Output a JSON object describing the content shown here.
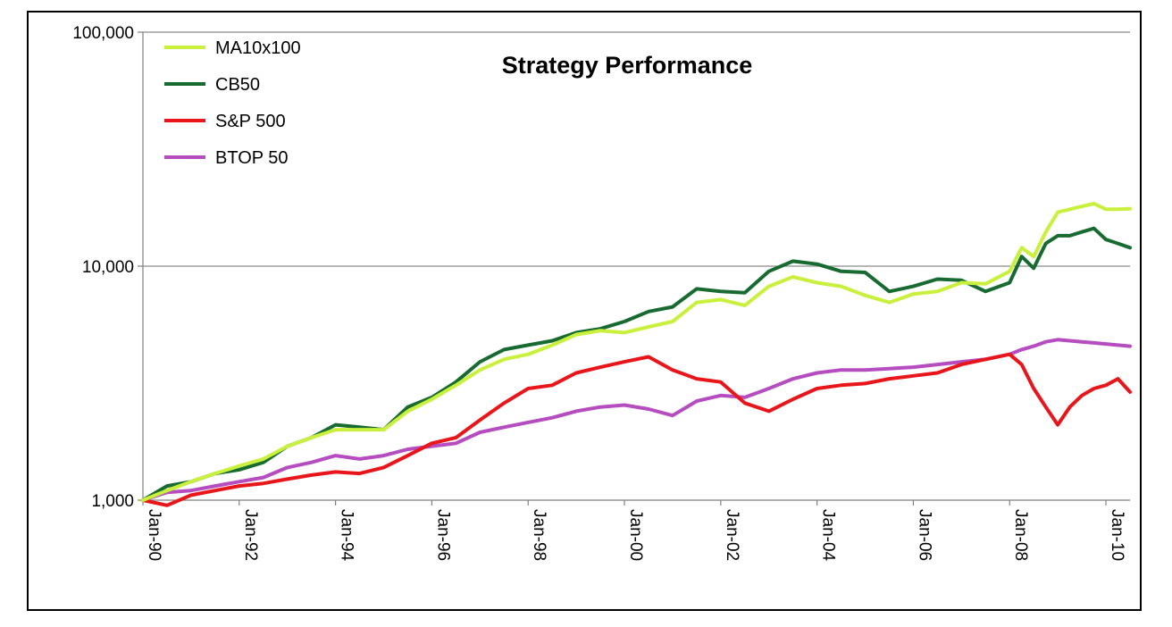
{
  "chart_data": {
    "type": "line",
    "title": "Strategy Performance",
    "xlabel": "",
    "ylabel": "",
    "y_scale": "log",
    "ylim": [
      1000,
      100000
    ],
    "y_ticks": [
      1000,
      10000,
      100000
    ],
    "y_tick_labels": [
      "1,000",
      "10,000",
      "100,000"
    ],
    "x_range": [
      1990.0,
      2010.5
    ],
    "x_ticks": [
      1990,
      1992,
      1994,
      1996,
      1998,
      2000,
      2002,
      2004,
      2006,
      2008,
      2010
    ],
    "x_tick_labels": [
      "Jan-90",
      "Jan-92",
      "Jan-94",
      "Jan-96",
      "Jan-98",
      "Jan-00",
      "Jan-02",
      "Jan-04",
      "Jan-06",
      "Jan-08",
      "Jan-10"
    ],
    "grid": "horizontal major",
    "legend_position": "top-left",
    "series": [
      {
        "name": "MA10x100",
        "color": "#c9f03c",
        "x": [
          1990.0,
          1990.5,
          1991.0,
          1991.5,
          1992.0,
          1992.5,
          1993.0,
          1993.5,
          1994.0,
          1994.5,
          1995.0,
          1995.5,
          1996.0,
          1996.5,
          1997.0,
          1997.5,
          1998.0,
          1998.5,
          1999.0,
          1999.5,
          2000.0,
          2000.5,
          2001.0,
          2001.5,
          2002.0,
          2002.5,
          2003.0,
          2003.5,
          2004.0,
          2004.5,
          2005.0,
          2005.5,
          2006.0,
          2006.5,
          2007.0,
          2007.5,
          2008.0,
          2008.25,
          2008.5,
          2008.75,
          2009.0,
          2009.25,
          2009.5,
          2009.75,
          2010.0,
          2010.25,
          2010.5
        ],
        "values": [
          1000,
          1100,
          1200,
          1300,
          1400,
          1500,
          1700,
          1850,
          2000,
          2000,
          2000,
          2400,
          2700,
          3100,
          3600,
          4000,
          4200,
          4600,
          5100,
          5300,
          5200,
          5500,
          5800,
          7000,
          7200,
          6800,
          8200,
          9000,
          8500,
          8200,
          7500,
          7000,
          7600,
          7800,
          8500,
          8400,
          9500,
          12000,
          11000,
          14000,
          17000,
          17500,
          18000,
          18500,
          17500,
          17500,
          17600
        ]
      },
      {
        "name": "CB50",
        "color": "#186b30",
        "x": [
          1990.0,
          1990.5,
          1991.0,
          1991.5,
          1992.0,
          1992.5,
          1993.0,
          1993.5,
          1994.0,
          1994.5,
          1995.0,
          1995.5,
          1996.0,
          1996.5,
          1997.0,
          1997.5,
          1998.0,
          1998.5,
          1999.0,
          1999.5,
          2000.0,
          2000.5,
          2001.0,
          2001.5,
          2002.0,
          2002.5,
          2003.0,
          2003.5,
          2004.0,
          2004.5,
          2005.0,
          2005.5,
          2006.0,
          2006.5,
          2007.0,
          2007.5,
          2008.0,
          2008.25,
          2008.5,
          2008.75,
          2009.0,
          2009.25,
          2009.5,
          2009.75,
          2010.0,
          2010.25,
          2010.5
        ],
        "values": [
          1000,
          1150,
          1200,
          1300,
          1350,
          1450,
          1700,
          1850,
          2100,
          2050,
          2000,
          2500,
          2750,
          3200,
          3900,
          4400,
          4600,
          4800,
          5200,
          5400,
          5800,
          6400,
          6700,
          8000,
          7800,
          7700,
          9500,
          10500,
          10200,
          9500,
          9400,
          7800,
          8200,
          8800,
          8700,
          7800,
          8500,
          11000,
          9800,
          12500,
          13500,
          13500,
          14000,
          14500,
          13000,
          12500,
          12000
        ]
      },
      {
        "name": "S&P 500",
        "color": "#e8161a",
        "x": [
          1990.0,
          1990.5,
          1991.0,
          1991.5,
          1992.0,
          1992.5,
          1993.0,
          1993.5,
          1994.0,
          1994.5,
          1995.0,
          1995.5,
          1996.0,
          1996.5,
          1997.0,
          1997.5,
          1998.0,
          1998.5,
          1999.0,
          1999.5,
          2000.0,
          2000.5,
          2001.0,
          2001.5,
          2002.0,
          2002.5,
          2003.0,
          2003.5,
          2004.0,
          2004.5,
          2005.0,
          2005.5,
          2006.0,
          2006.5,
          2007.0,
          2007.5,
          2008.0,
          2008.25,
          2008.5,
          2008.75,
          2009.0,
          2009.25,
          2009.5,
          2009.75,
          2010.0,
          2010.25,
          2010.5
        ],
        "values": [
          1000,
          950,
          1050,
          1100,
          1150,
          1180,
          1230,
          1280,
          1320,
          1300,
          1380,
          1550,
          1750,
          1850,
          2200,
          2600,
          3000,
          3100,
          3500,
          3700,
          3900,
          4100,
          3600,
          3300,
          3200,
          2600,
          2400,
          2700,
          3000,
          3100,
          3150,
          3300,
          3400,
          3500,
          3800,
          4000,
          4200,
          3800,
          3000,
          2500,
          2100,
          2500,
          2800,
          3000,
          3100,
          3300,
          2900
        ]
      },
      {
        "name": "BTOP 50",
        "color": "#b54cbf",
        "x": [
          1990.0,
          1990.5,
          1991.0,
          1991.5,
          1992.0,
          1992.5,
          1993.0,
          1993.5,
          1994.0,
          1994.5,
          1995.0,
          1995.5,
          1996.0,
          1996.5,
          1997.0,
          1997.5,
          1998.0,
          1998.5,
          1999.0,
          1999.5,
          2000.0,
          2000.5,
          2001.0,
          2001.5,
          2002.0,
          2002.5,
          2003.0,
          2003.5,
          2004.0,
          2004.5,
          2005.0,
          2005.5,
          2006.0,
          2006.5,
          2007.0,
          2007.5,
          2008.0,
          2008.25,
          2008.5,
          2008.75,
          2009.0,
          2009.25,
          2009.5,
          2009.75,
          2010.0,
          2010.25,
          2010.5
        ],
        "values": [
          1000,
          1080,
          1100,
          1150,
          1200,
          1250,
          1380,
          1450,
          1550,
          1500,
          1550,
          1650,
          1700,
          1750,
          1950,
          2050,
          2150,
          2250,
          2400,
          2500,
          2550,
          2450,
          2300,
          2650,
          2800,
          2750,
          3000,
          3300,
          3500,
          3600,
          3600,
          3650,
          3700,
          3800,
          3900,
          4000,
          4200,
          4400,
          4550,
          4750,
          4850,
          4800,
          4750,
          4700,
          4650,
          4600,
          4550
        ]
      }
    ]
  }
}
